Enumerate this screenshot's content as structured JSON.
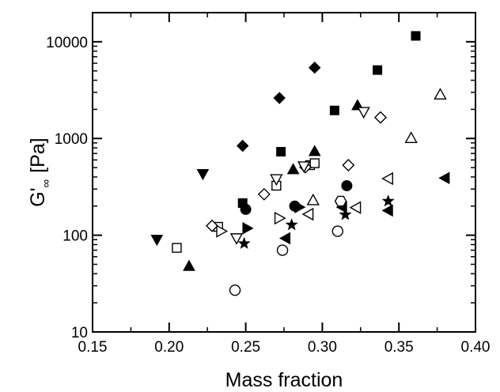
{
  "chart_data": {
    "type": "scatter",
    "title": "",
    "xlabel": "Mass fraction",
    "ylabel_main": "G'",
    "ylabel_subscript": "∞",
    "ylabel_unit": "[Pa]",
    "xlim": [
      0.15,
      0.4
    ],
    "ylim": [
      10,
      20000
    ],
    "y_scale": "log",
    "grid": false,
    "x_ticks": [
      {
        "value": 0.15,
        "label": "0.15"
      },
      {
        "value": 0.2,
        "label": "0.20"
      },
      {
        "value": 0.25,
        "label": "0.25"
      },
      {
        "value": 0.3,
        "label": "0.30"
      },
      {
        "value": 0.35,
        "label": "0.35"
      },
      {
        "value": 0.4,
        "label": "0.40"
      }
    ],
    "y_ticks": [
      {
        "value": 10,
        "label": "10"
      },
      {
        "value": 100,
        "label": "100"
      },
      {
        "value": 1000,
        "label": "1000"
      },
      {
        "value": 10000,
        "label": "10000"
      }
    ],
    "series": [
      {
        "marker": "square-filled",
        "points": [
          [
            0.248,
            215
          ],
          [
            0.273,
            730
          ],
          [
            0.308,
            1950
          ],
          [
            0.336,
            5100
          ],
          [
            0.361,
            11500
          ]
        ]
      },
      {
        "marker": "diamond-filled",
        "points": [
          [
            0.248,
            840
          ],
          [
            0.272,
            2620
          ],
          [
            0.295,
            5400
          ]
        ]
      },
      {
        "marker": "triangle-up-filled",
        "points": [
          [
            0.213,
            48
          ],
          [
            0.281,
            480
          ],
          [
            0.295,
            740
          ],
          [
            0.323,
            2200
          ]
        ]
      },
      {
        "marker": "triangle-down-filled",
        "points": [
          [
            0.192,
            90
          ],
          [
            0.222,
            430
          ]
        ]
      },
      {
        "marker": "circle-filled",
        "points": [
          [
            0.25,
            185
          ],
          [
            0.282,
            200
          ],
          [
            0.316,
            325
          ]
        ]
      },
      {
        "marker": "triangle-right-filled",
        "points": [
          [
            0.251,
            118
          ],
          [
            0.285,
            195
          ]
        ]
      },
      {
        "marker": "triangle-left-filled",
        "points": [
          [
            0.276,
            93
          ],
          [
            0.313,
            195
          ],
          [
            0.343,
            180
          ],
          [
            0.38,
            390
          ]
        ]
      },
      {
        "marker": "star-filled",
        "points": [
          [
            0.249,
            82
          ],
          [
            0.28,
            128
          ],
          [
            0.315,
            163
          ],
          [
            0.343,
            225
          ]
        ]
      },
      {
        "marker": "circle-open",
        "points": [
          [
            0.243,
            27
          ],
          [
            0.274,
            70
          ],
          [
            0.31,
            110
          ]
        ]
      },
      {
        "marker": "square-open",
        "points": [
          [
            0.205,
            74
          ],
          [
            0.232,
            122
          ],
          [
            0.27,
            325
          ],
          [
            0.292,
            530
          ],
          [
            0.295,
            555
          ]
        ]
      },
      {
        "marker": "diamond-open",
        "points": [
          [
            0.228,
            125
          ],
          [
            0.262,
            265
          ],
          [
            0.289,
            505
          ],
          [
            0.317,
            530
          ],
          [
            0.338,
            1650
          ]
        ]
      },
      {
        "marker": "triangle-up-open",
        "points": [
          [
            0.294,
            230
          ],
          [
            0.358,
            1010
          ],
          [
            0.377,
            2850
          ]
        ]
      },
      {
        "marker": "triangle-down-open",
        "points": [
          [
            0.244,
            93
          ],
          [
            0.27,
            380
          ],
          [
            0.288,
            515
          ],
          [
            0.327,
            1880
          ]
        ]
      },
      {
        "marker": "triangle-right-open",
        "points": [
          [
            0.234,
            110
          ],
          [
            0.272,
            150
          ]
        ]
      },
      {
        "marker": "triangle-left-open",
        "points": [
          [
            0.291,
            165
          ],
          [
            0.322,
            193
          ],
          [
            0.343,
            385
          ]
        ]
      },
      {
        "marker": "hexagon-open",
        "points": [
          [
            0.312,
            225
          ]
        ]
      }
    ]
  }
}
